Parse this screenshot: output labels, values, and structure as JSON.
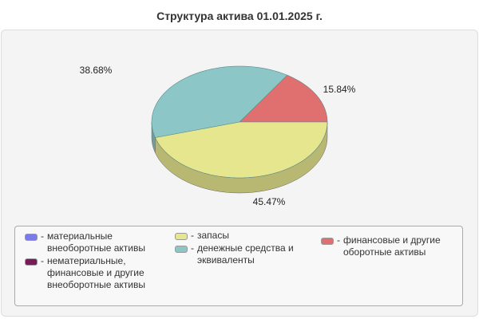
{
  "chart_data": {
    "type": "pie",
    "title": "Структура актива 01.01.2025 г.",
    "three_d": true,
    "slices": [
      {
        "name": "финансовые и другие оборотные активы",
        "value": 15.84,
        "label": "15.84%",
        "color": "#e07070"
      },
      {
        "name": "денежные средства и эквиваленты",
        "value": 38.68,
        "label": "38.68%",
        "color": "#8cc6c6"
      },
      {
        "name": "запасы",
        "value": 45.47,
        "label": "45.47%",
        "color": "#e6e68e"
      }
    ],
    "legend": [
      {
        "name": "материальные внеоборотные активы",
        "color": "#7b7bec"
      },
      {
        "name": "нематериальные, финансовые и другие внеоборотные активы",
        "color": "#7a1a5a"
      },
      {
        "name": "запасы",
        "color": "#e6e68e"
      },
      {
        "name": "денежные средства и эквиваленты",
        "color": "#8cc6c6"
      },
      {
        "name": "финансовые и другие оборотные активы",
        "color": "#e07070"
      }
    ],
    "legend_placement": "bottom"
  }
}
